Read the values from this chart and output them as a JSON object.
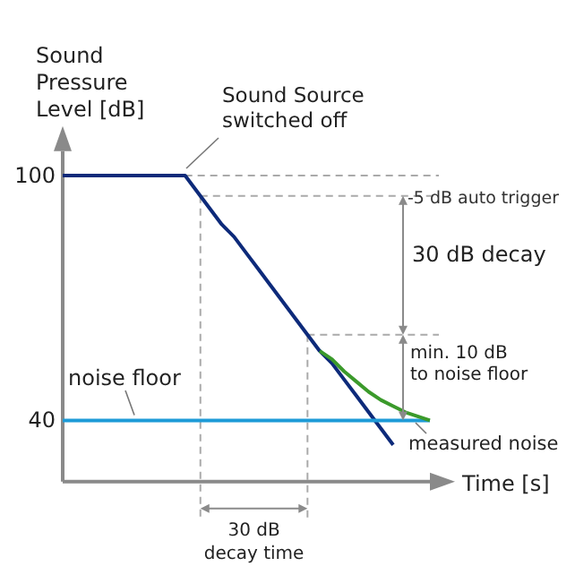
{
  "chart_data": {
    "type": "line",
    "ylabel": "Sound Pressure Level [dB]",
    "xlabel": "Time [s]",
    "categories": [
      null,
      null,
      null,
      null,
      null,
      null,
      null,
      null,
      null,
      null,
      null,
      null,
      null,
      null,
      null,
      null,
      null,
      null,
      null,
      null,
      null,
      null,
      null,
      null,
      null,
      null,
      null,
      null,
      null,
      null,
      null
    ],
    "series": [
      {
        "name": "noise floor",
        "color": "#1e9bd7",
        "values": [
          40,
          40,
          40,
          40,
          40,
          40,
          40,
          40,
          40,
          40,
          40,
          40,
          40,
          40,
          40,
          40,
          40,
          40,
          40,
          40,
          40,
          40,
          40,
          40,
          40,
          40,
          40,
          40,
          40,
          40,
          40
        ]
      },
      {
        "name": "measured noise",
        "color": "#3b9a2b",
        "values": [
          null,
          null,
          null,
          null,
          null,
          null,
          null,
          null,
          null,
          null,
          null,
          null,
          null,
          null,
          null,
          null,
          null,
          null,
          null,
          null,
          null,
          57,
          55,
          52,
          49.5,
          47,
          45,
          43.5,
          42,
          41,
          40
        ]
      },
      {
        "color": "#0d2a7a",
        "values": [
          100,
          100,
          100,
          100,
          100,
          100,
          100,
          100,
          100,
          100,
          100,
          96,
          92,
          88,
          85,
          81,
          77,
          73,
          69,
          65,
          61,
          57,
          54,
          50,
          46,
          42,
          38,
          34,
          null,
          null,
          null
        ]
      }
    ],
    "ylim": [
      25,
      106
    ],
    "yticks": [
      100,
      40
    ],
    "tick_labels": "y",
    "grid": false,
    "legend": false,
    "marker": "none",
    "line_style": "solid",
    "ref_lines": [
      {
        "axis": "y",
        "value": 100,
        "line_style": "dashed",
        "color": "#aaaaaa"
      },
      {
        "axis": "y",
        "value": 95,
        "label": "-5 dB auto trigger",
        "line_style": "dashed",
        "color": "#aaaaaa"
      },
      {
        "axis": "y",
        "value": 61,
        "line_style": "dashed",
        "color": "#aaaaaa"
      }
    ],
    "annotations": [
      "Sound Source\nswitched off",
      "30 dB decay",
      "min. 10 dB\nto noise floor",
      "30 dB\ndecay time"
    ]
  }
}
